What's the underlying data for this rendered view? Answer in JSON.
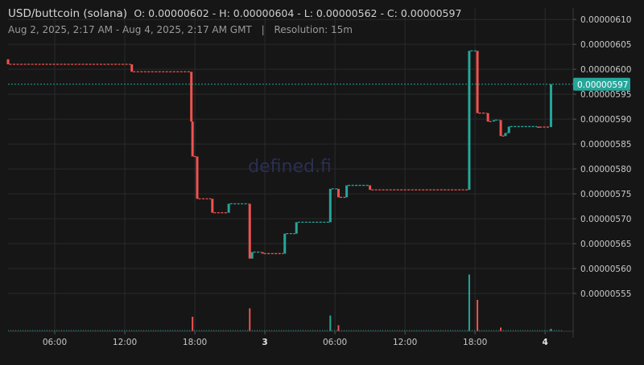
{
  "header": {
    "pair": "USD/buttcoin (solana)",
    "ohlc": "O: 0.00000602 - H: 0.00000604 - L: 0.00000562 - C: 0.00000597",
    "range": "Aug 2, 2025, 2:17 AM - Aug 4, 2025, 2:17 AM GMT",
    "separator": "|",
    "resolution": "Resolution: 15m"
  },
  "watermark": "defined.fi",
  "colors": {
    "background": "#161616",
    "grid": "#2a2a2a",
    "up": "#26a69a",
    "down": "#ef5350",
    "text": "#c8c8c8"
  },
  "chart_data": {
    "type": "candlestick",
    "x_ticks": [
      {
        "t": 6,
        "label": "06:00",
        "bold": false
      },
      {
        "t": 12,
        "label": "12:00",
        "bold": false
      },
      {
        "t": 18,
        "label": "18:00",
        "bold": false
      },
      {
        "t": 24,
        "label": "3",
        "bold": true
      },
      {
        "t": 30,
        "label": "06:00",
        "bold": false
      },
      {
        "t": 36,
        "label": "12:00",
        "bold": false
      },
      {
        "t": 42,
        "label": "18:00",
        "bold": false
      },
      {
        "t": 48,
        "label": "4",
        "bold": true
      }
    ],
    "y_ticks": [
      "0.00000610",
      "0.00000605",
      "0.00000600",
      "0.00000595",
      "0.00000590",
      "0.00000585",
      "0.00000580",
      "0.00000575",
      "0.00000570",
      "0.00000565",
      "0.00000560",
      "0.00000555"
    ],
    "ylim": [
      5.5e-06,
      6.11e-06
    ],
    "xlim": [
      2.0,
      50.4
    ],
    "last_price": "0.00000597",
    "last_price_value": 5.97e-06,
    "candles": [
      {
        "t": 2.0,
        "o": 6.02e-06,
        "h": 6.02e-06,
        "l": 6.01e-06,
        "c": 6.01e-06
      },
      {
        "t": 12.6,
        "o": 6.01e-06,
        "h": 6.01e-06,
        "l": 5.995e-06,
        "c": 5.995e-06
      },
      {
        "t": 17.7,
        "o": 5.995e-06,
        "h": 5.995e-06,
        "l": 5.895e-06,
        "c": 5.895e-06
      },
      {
        "t": 17.8,
        "o": 5.895e-06,
        "h": 5.895e-06,
        "l": 5.825e-06,
        "c": 5.825e-06
      },
      {
        "t": 18.2,
        "o": 5.825e-06,
        "h": 5.825e-06,
        "l": 5.74e-06,
        "c": 5.74e-06
      },
      {
        "t": 19.5,
        "o": 5.74e-06,
        "h": 5.74e-06,
        "l": 5.712e-06,
        "c": 5.712e-06
      },
      {
        "t": 20.9,
        "o": 5.712e-06,
        "h": 5.73e-06,
        "l": 5.712e-06,
        "c": 5.73e-06
      },
      {
        "t": 22.7,
        "o": 5.73e-06,
        "h": 5.73e-06,
        "l": 5.62e-06,
        "c": 5.62e-06
      },
      {
        "t": 22.9,
        "o": 5.62e-06,
        "h": 5.633e-06,
        "l": 5.62e-06,
        "c": 5.633e-06
      },
      {
        "t": 23.8,
        "o": 5.633e-06,
        "h": 5.633e-06,
        "l": 5.63e-06,
        "c": 5.63e-06
      },
      {
        "t": 25.7,
        "o": 5.63e-06,
        "h": 5.67e-06,
        "l": 5.63e-06,
        "c": 5.67e-06
      },
      {
        "t": 26.7,
        "o": 5.67e-06,
        "h": 5.693e-06,
        "l": 5.67e-06,
        "c": 5.693e-06
      },
      {
        "t": 29.6,
        "o": 5.693e-06,
        "h": 5.76e-06,
        "l": 5.693e-06,
        "c": 5.76e-06
      },
      {
        "t": 30.3,
        "o": 5.76e-06,
        "h": 5.76e-06,
        "l": 5.743e-06,
        "c": 5.743e-06
      },
      {
        "t": 31.0,
        "o": 5.743e-06,
        "h": 5.767e-06,
        "l": 5.743e-06,
        "c": 5.767e-06
      },
      {
        "t": 33.0,
        "o": 5.767e-06,
        "h": 5.767e-06,
        "l": 5.758e-06,
        "c": 5.758e-06
      },
      {
        "t": 41.5,
        "o": 5.758e-06,
        "h": 6.037e-06,
        "l": 5.758e-06,
        "c": 6.037e-06
      },
      {
        "t": 42.2,
        "o": 6.037e-06,
        "h": 6.037e-06,
        "l": 5.912e-06,
        "c": 5.912e-06
      },
      {
        "t": 43.1,
        "o": 5.912e-06,
        "h": 5.912e-06,
        "l": 5.895e-06,
        "c": 5.895e-06
      },
      {
        "t": 43.6,
        "o": 5.895e-06,
        "h": 5.898e-06,
        "l": 5.895e-06,
        "c": 5.898e-06
      },
      {
        "t": 44.2,
        "o": 5.898e-06,
        "h": 5.898e-06,
        "l": 5.866e-06,
        "c": 5.866e-06
      },
      {
        "t": 44.6,
        "o": 5.866e-06,
        "h": 5.872e-06,
        "l": 5.866e-06,
        "c": 5.872e-06
      },
      {
        "t": 44.9,
        "o": 5.872e-06,
        "h": 5.885e-06,
        "l": 5.872e-06,
        "c": 5.885e-06
      },
      {
        "t": 47.4,
        "o": 5.885e-06,
        "h": 5.885e-06,
        "l": 5.884e-06,
        "c": 5.884e-06
      },
      {
        "t": 48.5,
        "o": 5.884e-06,
        "h": 5.97e-06,
        "l": 5.884e-06,
        "c": 5.97e-06
      }
    ],
    "volume": [
      {
        "t": 17.8,
        "v": 0.12,
        "dir": "down"
      },
      {
        "t": 22.7,
        "v": 0.19,
        "dir": "down"
      },
      {
        "t": 29.6,
        "v": 0.13,
        "dir": "up"
      },
      {
        "t": 30.3,
        "v": 0.05,
        "dir": "down"
      },
      {
        "t": 41.5,
        "v": 0.47,
        "dir": "up"
      },
      {
        "t": 42.2,
        "v": 0.26,
        "dir": "down"
      },
      {
        "t": 44.2,
        "v": 0.03,
        "dir": "down"
      },
      {
        "t": 48.5,
        "v": 0.02,
        "dir": "up"
      }
    ]
  }
}
